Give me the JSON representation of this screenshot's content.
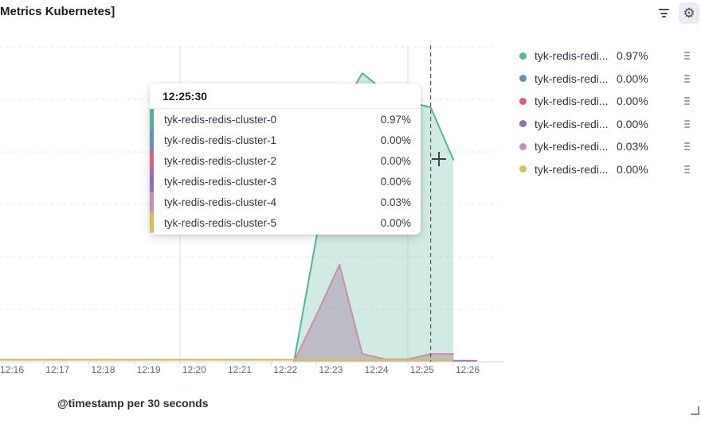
{
  "panel": {
    "title": "Metrics Kubernetes]"
  },
  "toolbar": {
    "filter_icon": "filter-lines-icon",
    "gear_icon": "gear-icon",
    "gear_glyph": "⚙"
  },
  "tooltip": {
    "header": "12:25:30",
    "rows": [
      {
        "label": "tyk-redis-redis-cluster-0",
        "value": "0.97%",
        "color": "#54B399"
      },
      {
        "label": "tyk-redis-redis-cluster-1",
        "value": "0.00%",
        "color": "#6092C0"
      },
      {
        "label": "tyk-redis-redis-cluster-2",
        "value": "0.00%",
        "color": "#D36086"
      },
      {
        "label": "tyk-redis-redis-cluster-3",
        "value": "0.00%",
        "color": "#9170B8"
      },
      {
        "label": "tyk-redis-redis-cluster-4",
        "value": "0.03%",
        "color": "#CA8EAE"
      },
      {
        "label": "tyk-redis-redis-cluster-5",
        "value": "0.00%",
        "color": "#D6BF57"
      }
    ]
  },
  "legend": {
    "action_icon": "drag-handle-icon",
    "items": [
      {
        "label": "tyk-redis-redi...",
        "value": "0.97%",
        "color": "#54B399"
      },
      {
        "label": "tyk-redis-redi...",
        "value": "0.00%",
        "color": "#6092C0"
      },
      {
        "label": "tyk-redis-redi...",
        "value": "0.00%",
        "color": "#D36086"
      },
      {
        "label": "tyk-redis-redi...",
        "value": "0.00%",
        "color": "#9170B8"
      },
      {
        "label": "tyk-redis-redi...",
        "value": "0.03%",
        "color": "#CA8EAE"
      },
      {
        "label": "tyk-redis-redi...",
        "value": "0.00%",
        "color": "#D6BF57"
      }
    ]
  },
  "chart_data": {
    "type": "area",
    "title": "",
    "xlabel": "@timestamp per 30 seconds",
    "ylabel": "",
    "unit": "percent",
    "grid": true,
    "legend_position": "right",
    "x_tick_labels": [
      "12:16",
      "12:17",
      "12:18",
      "12:19",
      "12:20",
      "12:21",
      "12:22",
      "12:23",
      "12:24",
      "12:25",
      "12:26"
    ],
    "x_major_gridlines": [
      "12:20",
      "12:25"
    ],
    "ylim": [
      0,
      1.2
    ],
    "y_grid_step_percent": 0.2,
    "crosshair_time": "12:25:30",
    "series": [
      {
        "name": "tyk-redis-redis-cluster-0",
        "color": "#54B399",
        "fill": "rgba(84,179,153,0.27)",
        "times": [
          "12:22:30",
          "12:23:00",
          "12:23:30",
          "12:24:00",
          "12:24:30",
          "12:25:00",
          "12:25:30",
          "12:26:00"
        ],
        "values": [
          0,
          0.48,
          0.95,
          1.1,
          1.03,
          0.99,
          0.97,
          0.77
        ]
      },
      {
        "name": "tyk-redis-redis-cluster-1",
        "color": "#6092C0",
        "times": [
          "12:16:00",
          "12:26:00"
        ],
        "values": [
          0,
          0
        ]
      },
      {
        "name": "tyk-redis-redis-cluster-2",
        "color": "#D36086",
        "times": [
          "12:16:00",
          "12:26:00"
        ],
        "values": [
          0,
          0
        ]
      },
      {
        "name": "tyk-redis-redis-cluster-3",
        "color": "#9170B8",
        "stroke_width": 2.4,
        "times": [
          "12:26:00",
          "12:26:30"
        ],
        "values": [
          0.003,
          0.003
        ]
      },
      {
        "name": "tyk-redis-redis-cluster-4",
        "color": "#CA8EAE",
        "fill": "rgba(163,131,155,0.45)",
        "times": [
          "12:22:30",
          "12:23:00",
          "12:23:30",
          "12:24:00",
          "12:24:30",
          "12:25:00",
          "12:25:30",
          "12:26:00"
        ],
        "values": [
          0,
          0.18,
          0.37,
          0.03,
          0.01,
          0.01,
          0.03,
          0.03
        ]
      },
      {
        "name": "tyk-redis-redis-cluster-5",
        "color": "#D6BF57",
        "stroke_width": 2.4,
        "times": [
          "12:16:00",
          "12:26:00"
        ],
        "values": [
          0.008,
          0.008
        ]
      }
    ]
  }
}
